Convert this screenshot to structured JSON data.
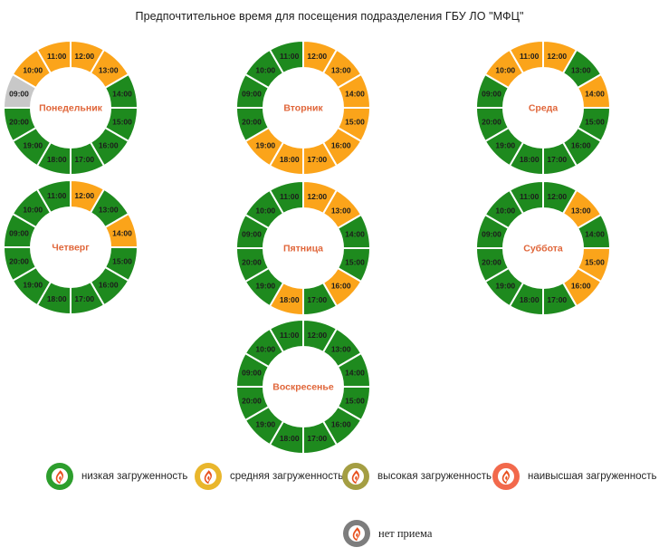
{
  "title": "Предпочтительное время для посещения подразделения ГБУ ЛО \"МФЦ\"",
  "colors": {
    "background": "#ffffff",
    "title_text": "#1a1a1a",
    "day_label": "#e0663a",
    "hour_label": "#1c1c1c",
    "slice_separator": "#ffffff",
    "flame": "#e8511f"
  },
  "chart_data": {
    "type": "pie",
    "subtype": "donut-small-multiples",
    "title": "Предпочтительное время для посещения подразделения ГБУ ЛО \"МФЦ\"",
    "categories": [
      "09:00",
      "10:00",
      "11:00",
      "12:00",
      "13:00",
      "14:00",
      "15:00",
      "16:00",
      "17:00",
      "18:00",
      "19:00",
      "20:00"
    ],
    "slice_value": 1,
    "start": "12:00 slice starts at top, clockwise",
    "legend_position": "bottom",
    "charts": [
      {
        "key": "monday",
        "day": "Понедельник",
        "loads": [
          "none",
          "medium",
          "medium",
          "medium",
          "medium",
          "low",
          "low",
          "low",
          "low",
          "low",
          "low",
          "low"
        ]
      },
      {
        "key": "tuesday",
        "day": "Вторник",
        "loads": [
          "low",
          "low",
          "low",
          "medium",
          "medium",
          "medium",
          "medium",
          "medium",
          "medium",
          "medium",
          "medium",
          "low"
        ]
      },
      {
        "key": "wednesday",
        "day": "Среда",
        "loads": [
          "low",
          "medium",
          "medium",
          "medium",
          "low",
          "medium",
          "low",
          "low",
          "low",
          "low",
          "low",
          "low"
        ]
      },
      {
        "key": "thursday",
        "day": "Четверг",
        "loads": [
          "low",
          "low",
          "low",
          "medium",
          "low",
          "medium",
          "low",
          "low",
          "low",
          "low",
          "low",
          "low"
        ]
      },
      {
        "key": "friday",
        "day": "Пятница",
        "loads": [
          "low",
          "low",
          "low",
          "medium",
          "medium",
          "low",
          "low",
          "medium",
          "low",
          "medium",
          "low",
          "low"
        ]
      },
      {
        "key": "saturday",
        "day": "Суббота",
        "loads": [
          "low",
          "low",
          "low",
          "low",
          "medium",
          "low",
          "medium",
          "medium",
          "low",
          "low",
          "low",
          "low"
        ]
      },
      {
        "key": "sunday",
        "day": "Воскресенье",
        "loads": [
          "low",
          "low",
          "low",
          "low",
          "low",
          "low",
          "low",
          "low",
          "low",
          "low",
          "low",
          "low"
        ]
      }
    ],
    "load_levels": [
      {
        "key": "low",
        "label": "низкая загруженность",
        "segment_color": "#1e8a1e",
        "legend_color": "#2d9e2d"
      },
      {
        "key": "medium",
        "label": "средняя загруженность",
        "segment_color": "#fba41a",
        "legend_color": "#e9b62c"
      },
      {
        "key": "high",
        "label": "высокая загруженность",
        "segment_color": "#a49e43",
        "legend_color": "#a49e43"
      },
      {
        "key": "highest",
        "label": "наивысшая загруженность",
        "segment_color": "#f2694c",
        "legend_color": "#f2694c"
      },
      {
        "key": "none",
        "label": "нет приема",
        "segment_color": "#c8c8c8",
        "legend_color": "#7d7d7d"
      }
    ]
  }
}
